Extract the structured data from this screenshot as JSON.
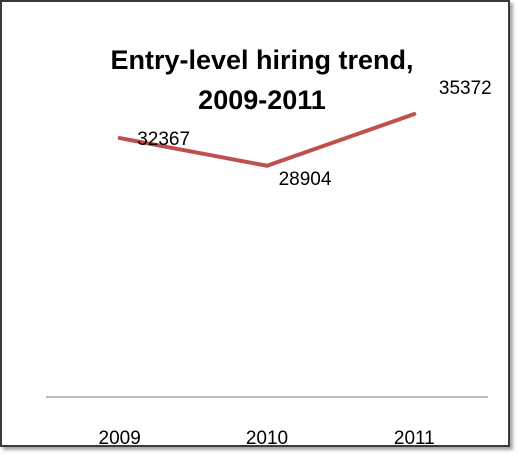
{
  "chart_data": {
    "type": "line",
    "title_line1": "Entry-level hiring trend,",
    "title_line2": "2009-2011",
    "categories": [
      "2009",
      "2010",
      "2011"
    ],
    "series": [
      {
        "values": [
          32367,
          28904,
          35372
        ],
        "color": "#c0504d"
      }
    ],
    "data_labels": [
      "32367",
      "28904",
      "35372"
    ],
    "xlabel": "",
    "ylabel": "",
    "ylim": [
      0,
      40000
    ],
    "grid": false,
    "legend": "none",
    "axis_color": "#a6a6a6"
  }
}
